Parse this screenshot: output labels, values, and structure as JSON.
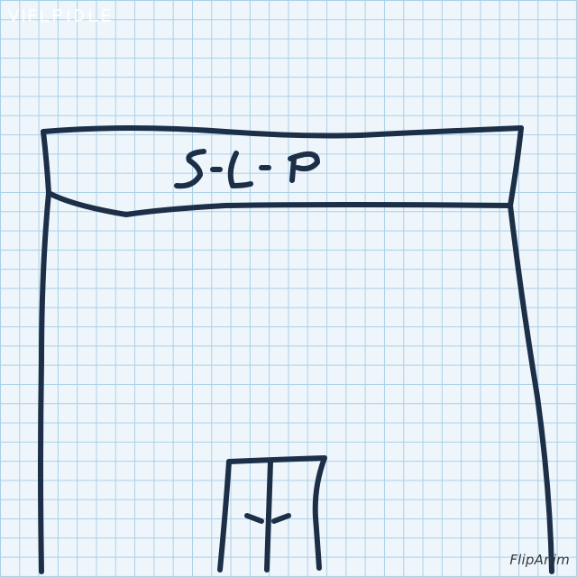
{
  "sign": {
    "text": "S-L-P"
  },
  "watermark": {
    "app_name": "FlipAnim"
  },
  "colors": {
    "ink": "#1c2f47",
    "paper": "#eef6fc",
    "grid": "#a9cfe6"
  }
}
